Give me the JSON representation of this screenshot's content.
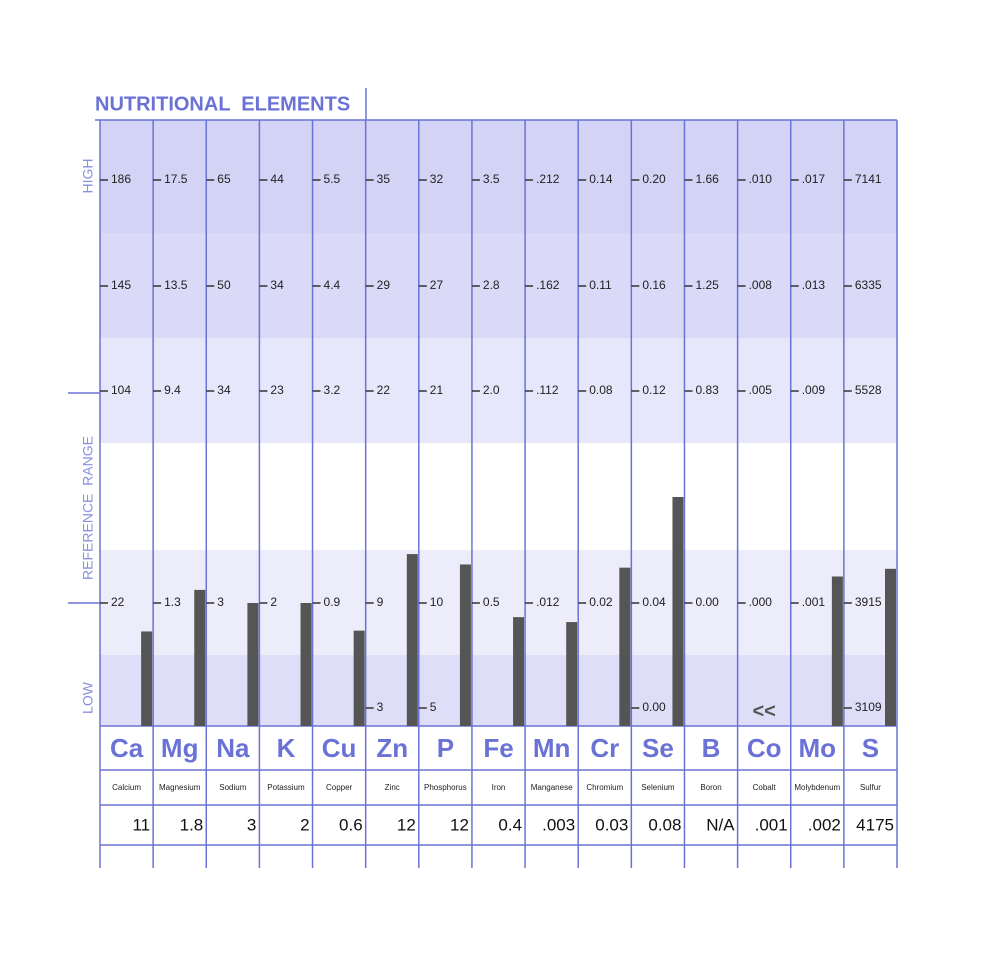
{
  "chart_data": {
    "type": "element-columns",
    "title": "NUTRITIONAL  ELEMENTS",
    "band_labels": [
      "HIGH",
      "REFERENCE  RANGE",
      "LOW"
    ],
    "bar_color": "#555555",
    "columns": [
      {
        "symbol": "Ca",
        "name": "Calcium",
        "ticks": [
          186,
          145,
          104,
          22,
          null
        ],
        "value": 11
      },
      {
        "symbol": "Mg",
        "name": "Magnesium",
        "ticks": [
          17.5,
          13.5,
          9.4,
          1.3,
          null
        ],
        "value": 1.8
      },
      {
        "symbol": "Na",
        "name": "Sodium",
        "ticks": [
          65,
          50,
          34,
          3,
          null
        ],
        "value": 3
      },
      {
        "symbol": "K",
        "name": "Potassium",
        "ticks": [
          44,
          34,
          23,
          2,
          null
        ],
        "value": 2
      },
      {
        "symbol": "Cu",
        "name": "Copper",
        "ticks": [
          5.5,
          4.4,
          3.2,
          0.9,
          null
        ],
        "value": 0.6
      },
      {
        "symbol": "Zn",
        "name": "Zinc",
        "ticks": [
          35,
          29,
          22,
          9,
          3
        ],
        "value": 12
      },
      {
        "symbol": "P",
        "name": "Phosphorus",
        "ticks": [
          32,
          27,
          21,
          10,
          5
        ],
        "value": 12
      },
      {
        "symbol": "Fe",
        "name": "Iron",
        "ticks": [
          3.5,
          2.8,
          {
            "value": 2,
            "label": "2.0"
          },
          0.5,
          null
        ],
        "value": 0.4
      },
      {
        "symbol": "Mn",
        "name": "Manganese",
        "ticks": [
          {
            "value": 0.212,
            "label": ".212"
          },
          {
            "value": 0.162,
            "label": ".162"
          },
          {
            "value": 0.112,
            "label": ".112"
          },
          {
            "value": 0.012,
            "label": ".012"
          },
          null
        ],
        "value": {
          "value": 0.003,
          "label": ".003"
        }
      },
      {
        "symbol": "Cr",
        "name": "Chromium",
        "ticks": [
          0.14,
          0.11,
          0.08,
          0.02,
          null
        ],
        "value": 0.03
      },
      {
        "symbol": "Se",
        "name": "Selenium",
        "ticks": [
          {
            "value": 0.2,
            "label": "0.20"
          },
          0.16,
          0.12,
          0.04,
          {
            "value": 0,
            "label": "0.00"
          }
        ],
        "value": 0.08
      },
      {
        "symbol": "B",
        "name": "Boron",
        "ticks": [
          1.66,
          1.25,
          0.83,
          {
            "value": 0,
            "label": "0.00"
          },
          null
        ],
        "value": "N/A"
      },
      {
        "symbol": "Co",
        "name": "Cobalt",
        "ticks": [
          {
            "value": 0.01,
            "label": ".010"
          },
          {
            "value": 0.008,
            "label": ".008"
          },
          {
            "value": 0.005,
            "label": ".005"
          },
          {
            "value": 0,
            "label": ".000"
          },
          null
        ],
        "value": {
          "value": 0.001,
          "label": ".001"
        },
        "flag": "<<"
      },
      {
        "symbol": "Mo",
        "name": "Molybdenum",
        "ticks": [
          {
            "value": 0.017,
            "label": ".017"
          },
          {
            "value": 0.013,
            "label": ".013"
          },
          {
            "value": 0.009,
            "label": ".009"
          },
          {
            "value": 0.001,
            "label": ".001"
          },
          null
        ],
        "value": {
          "value": 0.002,
          "label": ".002"
        }
      },
      {
        "symbol": "S",
        "name": "Sulfur",
        "ticks": [
          7141,
          6335,
          5528,
          3915,
          3109
        ],
        "value": 4175
      }
    ]
  }
}
